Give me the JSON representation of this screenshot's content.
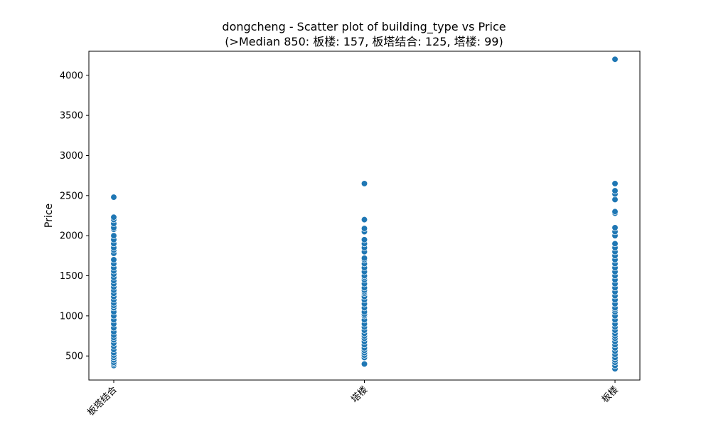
{
  "chart_data": {
    "type": "scatter",
    "title": "dongcheng - Scatter plot of building_type vs Price",
    "subtitle": "(>Median 850: 板楼: 157, 板塔结合: 125, 塔楼: 99)",
    "xlabel": "",
    "ylabel": "Price",
    "categories": [
      "板塔结合",
      "塔楼",
      "板楼"
    ],
    "ylim": [
      200,
      4300
    ],
    "yticks": [
      500,
      1000,
      1500,
      2000,
      2500,
      3000,
      3500,
      4000
    ],
    "grid": false,
    "color": "#1f77b4",
    "series": [
      {
        "category": "板塔结合",
        "values": [
          380,
          400,
          420,
          450,
          480,
          510,
          540,
          580,
          620,
          660,
          700,
          730,
          760,
          800,
          850,
          900,
          950,
          1000,
          1050,
          1100,
          1130,
          1160,
          1200,
          1240,
          1280,
          1320,
          1360,
          1400,
          1440,
          1480,
          1520,
          1560,
          1600,
          1650,
          1700,
          1780,
          1820,
          1850,
          1900,
          1950,
          2000,
          2080,
          2100,
          2150,
          2200,
          2230,
          2480
        ]
      },
      {
        "category": "塔楼",
        "values": [
          400,
          480,
          510,
          540,
          570,
          600,
          640,
          680,
          720,
          750,
          780,
          820,
          860,
          900,
          950,
          1000,
          1020,
          1050,
          1100,
          1150,
          1200,
          1240,
          1280,
          1300,
          1320,
          1350,
          1400,
          1450,
          1480,
          1500,
          1550,
          1600,
          1650,
          1700,
          1720,
          1800,
          1850,
          1900,
          1950,
          2050,
          2090,
          2200,
          2650
        ]
      },
      {
        "category": "板楼",
        "values": [
          340,
          380,
          420,
          450,
          480,
          520,
          560,
          600,
          640,
          680,
          720,
          750,
          780,
          820,
          860,
          900,
          950,
          1000,
          1050,
          1080,
          1100,
          1150,
          1200,
          1250,
          1300,
          1350,
          1400,
          1450,
          1500,
          1550,
          1600,
          1650,
          1700,
          1750,
          1800,
          1850,
          1900,
          2000,
          2050,
          2100,
          2280,
          2300,
          2450,
          2520,
          2560,
          2650,
          4200
        ]
      }
    ]
  }
}
